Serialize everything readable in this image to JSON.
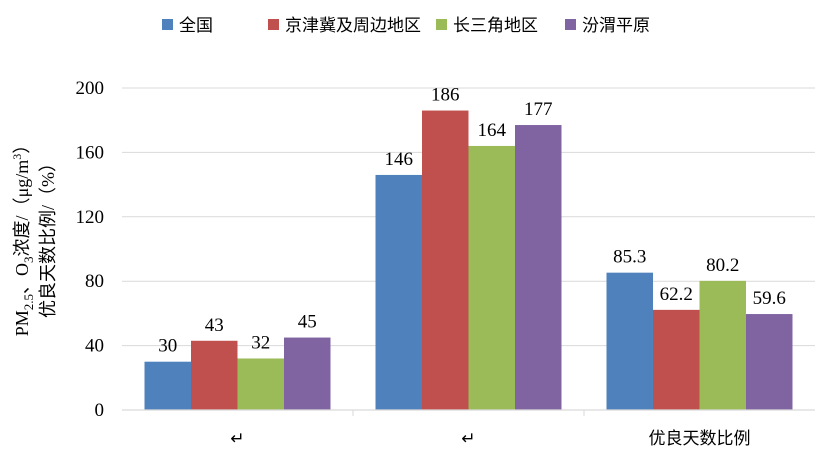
{
  "chart_data": {
    "type": "bar",
    "categories": [
      "↵",
      "↵",
      "优良天数比例"
    ],
    "series": [
      {
        "name": "全国",
        "color": "#4F81BD",
        "values": [
          30,
          146,
          85.3
        ],
        "labels": [
          "30",
          "146",
          "85.3"
        ]
      },
      {
        "name": "京津冀及周边地区",
        "color": "#C0504D",
        "values": [
          43,
          186,
          62.2
        ],
        "labels": [
          "43",
          "186",
          "62.2"
        ]
      },
      {
        "name": "长三角地区",
        "color": "#9BBB59",
        "values": [
          32,
          164,
          80.2
        ],
        "labels": [
          "32",
          "164",
          "80.2"
        ]
      },
      {
        "name": "汾渭平原",
        "color": "#8064A2",
        "values": [
          45,
          177,
          59.6
        ],
        "labels": [
          "45",
          "177",
          "59.6"
        ]
      }
    ],
    "ylim": [
      0,
      200
    ],
    "yticks": [
      0,
      40,
      80,
      120,
      160,
      200
    ],
    "ylabel": {
      "line1_prefix": "PM",
      "line1_pm_sub": "2.5",
      "line1_sep": "、O",
      "line1_o_sub": "3",
      "line1_suffix": "浓度/（μg/m",
      "line1_sup": "3",
      "line1_end": "）",
      "line2": "优良天数比例/（%）"
    },
    "xlabel": "",
    "grid": true,
    "legend": "top"
  }
}
